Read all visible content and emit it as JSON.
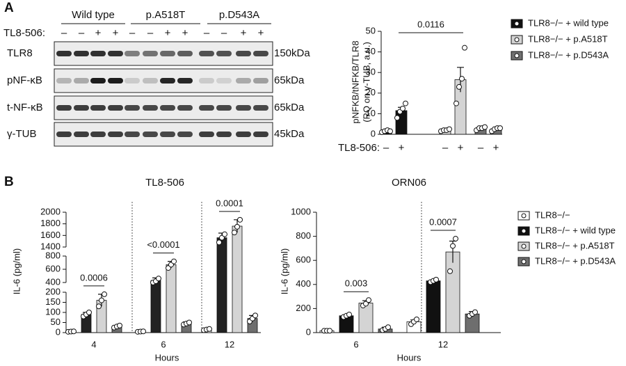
{
  "panel_labels": [
    "A",
    "B"
  ],
  "blot": {
    "groups": [
      "Wild type",
      "p.A518T",
      "p.D543A"
    ],
    "treatment_label": "TL8-506:",
    "treatment": [
      "–",
      "–",
      "+",
      "+",
      "–",
      "–",
      "+",
      "+",
      "–",
      "–",
      "+",
      "+"
    ],
    "rows": [
      {
        "label": "TLR8",
        "size": "150kDa"
      },
      {
        "label": "pNF-κB",
        "size": "65kDa"
      },
      {
        "label": "t-NF-κB",
        "size": "65kDa"
      },
      {
        "label": "γ-TUB",
        "size": "45kDa"
      }
    ]
  },
  "chart_data": [
    {
      "type": "bar",
      "ylabel": [
        "pNFKB/tNFKB/TLR8",
        "(RQ on γ-TUB, a.u.)"
      ],
      "x_label": "TL8-506:",
      "categories": [
        "–",
        "+"
      ],
      "ylim": [
        0,
        50
      ],
      "yticks": [
        0,
        10,
        20,
        30,
        40,
        50
      ],
      "series": [
        {
          "name": "TLR8−/− + wild type",
          "color": "#111111",
          "values": [
            1.5,
            11.5
          ],
          "errors": [
            0.3,
            1.6
          ],
          "points": [
            [
              1,
              1.5,
              2,
              1.5
            ],
            [
              8,
              11,
              12.5,
              15
            ]
          ]
        },
        {
          "name": "TLR8−/− + p.A518T",
          "color": "#d4d4d4",
          "values": [
            2,
            26.5
          ],
          "errors": [
            0.3,
            6
          ],
          "points": [
            [
              1.5,
              2,
              2,
              2.5
            ],
            [
              15,
              23,
              27,
              42
            ]
          ]
        },
        {
          "name": "TLR8−/− + p.D543A",
          "color": "#707070",
          "values": [
            2.8,
            2.5
          ],
          "errors": [
            0.4,
            0.5
          ],
          "points": [
            [
              2,
              3,
              3,
              3.5
            ],
            [
              1.5,
              2.5,
              3,
              3
            ]
          ]
        }
      ],
      "annotations": [
        "0.0116"
      ]
    },
    {
      "type": "bar",
      "title": "TL8-506",
      "ylabel": "IL-6 (pg/ml)",
      "xlabel": "Hours",
      "categories": [
        "4",
        "6",
        "12"
      ],
      "ylim_segments": [
        [
          0,
          200
        ],
        [
          400,
          800
        ],
        [
          1400,
          2000
        ]
      ],
      "yticks": [
        0,
        50,
        100,
        150,
        200,
        400,
        600,
        800,
        1400,
        1600,
        1800,
        2000
      ],
      "series": [
        {
          "name": "TLR8−/−",
          "color": "#ffffff",
          "values": [
            5,
            5,
            15
          ],
          "errors": [
            3,
            2,
            5
          ],
          "points": [
            [
              4,
              5,
              6
            ],
            [
              4,
              5,
              6
            ],
            [
              12,
              15,
              18
            ]
          ]
        },
        {
          "name": "TLR8−/− + wild type",
          "color": "#222222",
          "values": [
            90,
            430,
            1560
          ],
          "errors": [
            10,
            40,
            80
          ],
          "points": [
            [
              80,
              90,
              100
            ],
            [
              400,
              420,
              460
            ],
            [
              1480,
              1560,
              1620
            ]
          ]
        },
        {
          "name": "TLR8−/− + p.A518T",
          "color": "#d4d4d4",
          "values": [
            160,
            670,
            1760
          ],
          "errors": [
            30,
            50,
            110
          ],
          "points": [
            [
              130,
              160,
              190
            ],
            [
              620,
              670,
              720
            ],
            [
              1650,
              1750,
              1870
            ]
          ]
        },
        {
          "name": "TLR8−/− + p.D543A",
          "color": "#6e6e6e",
          "values": [
            30,
            45,
            70
          ],
          "errors": [
            5,
            8,
            15
          ],
          "points": [
            [
              25,
              30,
              35
            ],
            [
              40,
              45,
              50
            ],
            [
              55,
              70,
              85
            ]
          ]
        }
      ],
      "annotations": [
        "0.0006",
        "<0.0001",
        "0.0001"
      ]
    },
    {
      "type": "bar",
      "title": "ORN06",
      "ylabel": "IL-6 (pg/ml)",
      "xlabel": "Hours",
      "categories": [
        "6",
        "12"
      ],
      "ylim": [
        0,
        1000
      ],
      "yticks": [
        0,
        200,
        400,
        600,
        800,
        1000
      ],
      "series": [
        {
          "name": "TLR8−/−",
          "color": "#ffffff",
          "values": [
            15,
            90
          ],
          "errors": [
            2,
            15
          ],
          "points": [
            [
              15,
              15,
              15
            ],
            [
              70,
              90,
              110
            ]
          ]
        },
        {
          "name": "TLR8−/− + wild type",
          "color": "#111111",
          "values": [
            140,
            430
          ],
          "errors": [
            10,
            8
          ],
          "points": [
            [
              130,
              140,
              150
            ],
            [
              420,
              430,
              440
            ]
          ]
        },
        {
          "name": "TLR8−/− + p.A518T",
          "color": "#d4d4d4",
          "values": [
            245,
            670
          ],
          "errors": [
            20,
            90
          ],
          "points": [
            [
              225,
              240,
              270
            ],
            [
              510,
              720,
              780
            ]
          ]
        },
        {
          "name": "TLR8−/− + p.D543A",
          "color": "#6e6e6e",
          "values": [
            30,
            155
          ],
          "errors": [
            15,
            20
          ],
          "points": [
            [
              20,
              30,
              45
            ],
            [
              140,
              155,
              170
            ]
          ]
        }
      ],
      "annotations": [
        "0.003",
        "0.0007"
      ]
    }
  ]
}
